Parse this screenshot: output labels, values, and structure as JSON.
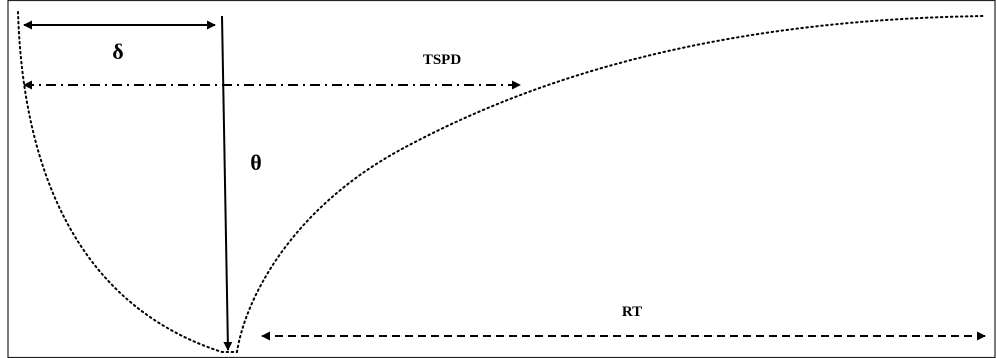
{
  "labels": {
    "delta": "δ",
    "theta": "θ",
    "tspd": "TSPD",
    "rt": "RT"
  }
}
